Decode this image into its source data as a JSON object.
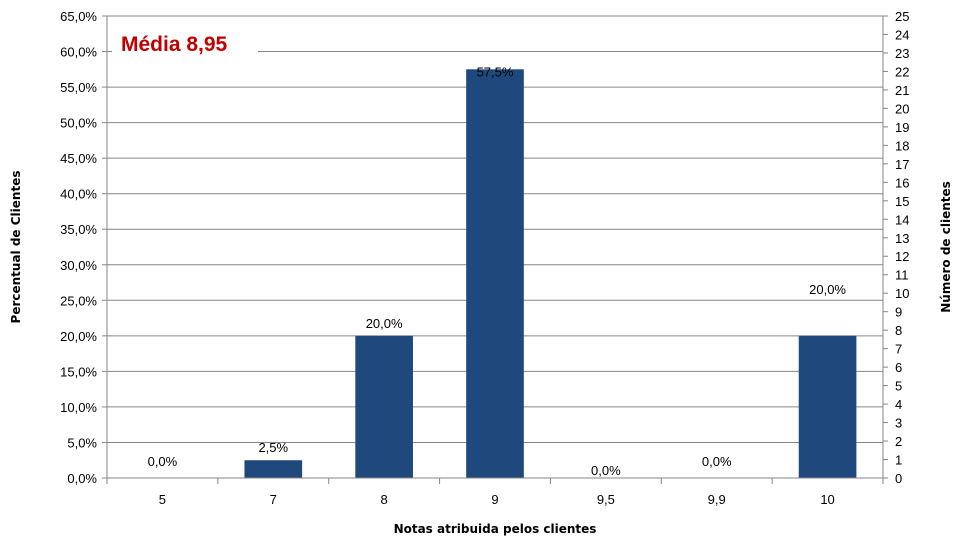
{
  "chart_data": {
    "type": "bar",
    "categories": [
      "5",
      "7",
      "8",
      "9",
      "9,5",
      "9,9",
      "10"
    ],
    "values": [
      0.0,
      2.5,
      20.0,
      57.5,
      0.0,
      0.0,
      20.0
    ],
    "data_labels": [
      "0,0%",
      "2,5%",
      "20,0%",
      "57,5%",
      "0,0%",
      "0,0%",
      "20,0%"
    ],
    "xlabel": "Notas atribuida pelos clientes",
    "ylabel": "Percentual de Clientes",
    "y2label": "Número de clientes",
    "ylim": [
      0,
      65
    ],
    "y2lim": [
      0,
      25
    ],
    "yticks": [
      "0,0%",
      "5,0%",
      "10,0%",
      "15,0%",
      "20,0%",
      "25,0%",
      "30,0%",
      "35,0%",
      "40,0%",
      "45,0%",
      "50,0%",
      "55,0%",
      "60,0%",
      "65,0%"
    ],
    "y2ticks": [
      "0",
      "1",
      "2",
      "3",
      "4",
      "5",
      "6",
      "7",
      "8",
      "9",
      "10",
      "11",
      "12",
      "13",
      "14",
      "15",
      "16",
      "17",
      "18",
      "19",
      "20",
      "21",
      "22",
      "23",
      "24",
      "25"
    ],
    "annotation": "Média 8,95",
    "grid": true,
    "legend": "none",
    "colors": {
      "bar": "#1F497D",
      "annotation": "#C00000",
      "grid": "#868686"
    }
  }
}
